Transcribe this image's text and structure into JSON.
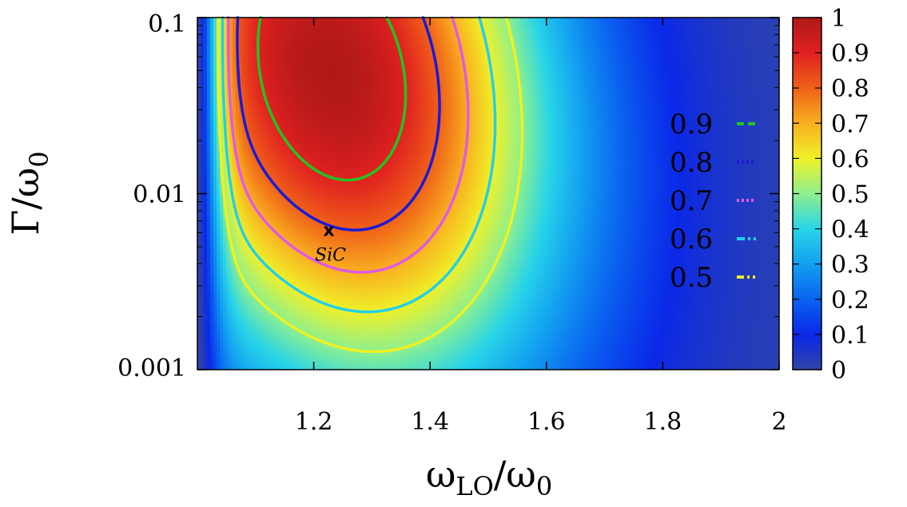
{
  "chart_data": {
    "type": "heatmap",
    "title": "",
    "xlabel": {
      "main": "ω",
      "sub": "LO",
      "main2": "/ω",
      "sub2": "0"
    },
    "ylabel": {
      "main": "Γ/ω",
      "sub": "0"
    },
    "x_range": [
      1.0,
      2.0
    ],
    "y_range": [
      0.001,
      0.1
    ],
    "y_scale": "log",
    "x_ticks": [
      {
        "value": 1.2,
        "label": "1.2"
      },
      {
        "value": 1.4,
        "label": "1.4"
      },
      {
        "value": 1.6,
        "label": "1.6"
      },
      {
        "value": 1.8,
        "label": "1.8"
      },
      {
        "value": 2.0,
        "label": "2"
      }
    ],
    "y_ticks": [
      {
        "value": 0.001,
        "label": "0.001"
      },
      {
        "value": 0.01,
        "label": "0.01"
      },
      {
        "value": 0.1,
        "label": "0.1"
      }
    ],
    "colorbar": {
      "range": [
        0,
        1
      ],
      "ticks": [
        {
          "value": 0,
          "label": "0"
        },
        {
          "value": 0.1,
          "label": "0.1"
        },
        {
          "value": 0.2,
          "label": "0.2"
        },
        {
          "value": 0.3,
          "label": "0.3"
        },
        {
          "value": 0.4,
          "label": "0.4"
        },
        {
          "value": 0.5,
          "label": "0.5"
        },
        {
          "value": 0.6,
          "label": "0.6"
        },
        {
          "value": 0.7,
          "label": "0.7"
        },
        {
          "value": 0.8,
          "label": "0.8"
        },
        {
          "value": 0.9,
          "label": "0.9"
        },
        {
          "value": 1,
          "label": "1"
        }
      ]
    },
    "peak": {
      "x": 1.23,
      "y": 0.05,
      "value": 1.0
    },
    "contours": [
      {
        "level": 0.9,
        "label": "0.9",
        "color": "#22c422",
        "dash": "dashed"
      },
      {
        "level": 0.8,
        "label": "0.8",
        "color": "#1a1ad8",
        "dash": "dotted"
      },
      {
        "level": 0.7,
        "label": "0.7",
        "color": "#e05ae0",
        "dash": "dotted"
      },
      {
        "level": 0.6,
        "label": "0.6",
        "color": "#22d0e8",
        "dash": "dash-dot"
      },
      {
        "level": 0.5,
        "label": "0.5",
        "color": "#f0f020",
        "dash": "dash-dot-dot"
      }
    ],
    "legend_position": "right-inside",
    "grid": false,
    "annotations": [
      {
        "x": 1.226,
        "y": 0.0062,
        "marker": "x",
        "text": "SiC"
      }
    ],
    "colormap": "jet"
  }
}
